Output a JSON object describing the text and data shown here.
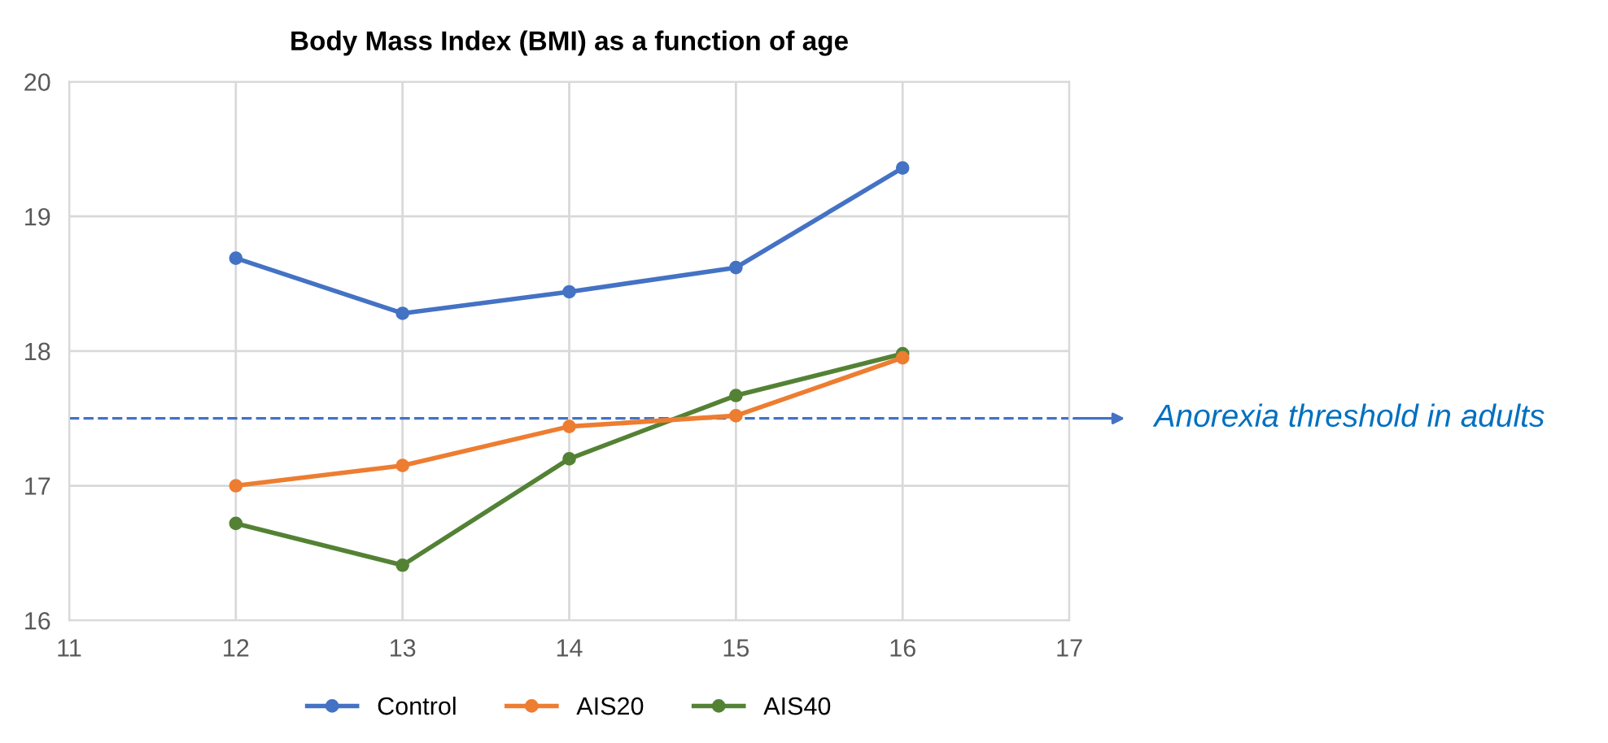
{
  "chart_data": {
    "type": "line",
    "title": "Body Mass Index (BMI) as a function of age",
    "x": [
      12,
      13,
      14,
      15,
      16
    ],
    "series": [
      {
        "name": "Control",
        "color": "#4472c4",
        "values": [
          18.69,
          18.28,
          18.44,
          18.62,
          19.36
        ]
      },
      {
        "name": "AIS20",
        "color": "#ed7d31",
        "values": [
          17.0,
          17.15,
          17.44,
          17.52,
          17.95
        ]
      },
      {
        "name": "AIS40",
        "color": "#548235",
        "values": [
          16.72,
          16.41,
          17.2,
          17.67,
          17.98
        ]
      }
    ],
    "xlim": [
      11,
      17
    ],
    "xticks": [
      11,
      12,
      13,
      14,
      15,
      16,
      17
    ],
    "ylim": [
      16,
      20
    ],
    "yticks": [
      16,
      17,
      18,
      19,
      20
    ],
    "ref_lines": [
      {
        "axis": "y",
        "value": 17.5,
        "label": "Anorexia threshold in adults",
        "color": "#4472c4",
        "line_style": "dashed"
      }
    ],
    "grid": true,
    "legend": "bottom",
    "marker": "circle",
    "line_style": "solid"
  }
}
